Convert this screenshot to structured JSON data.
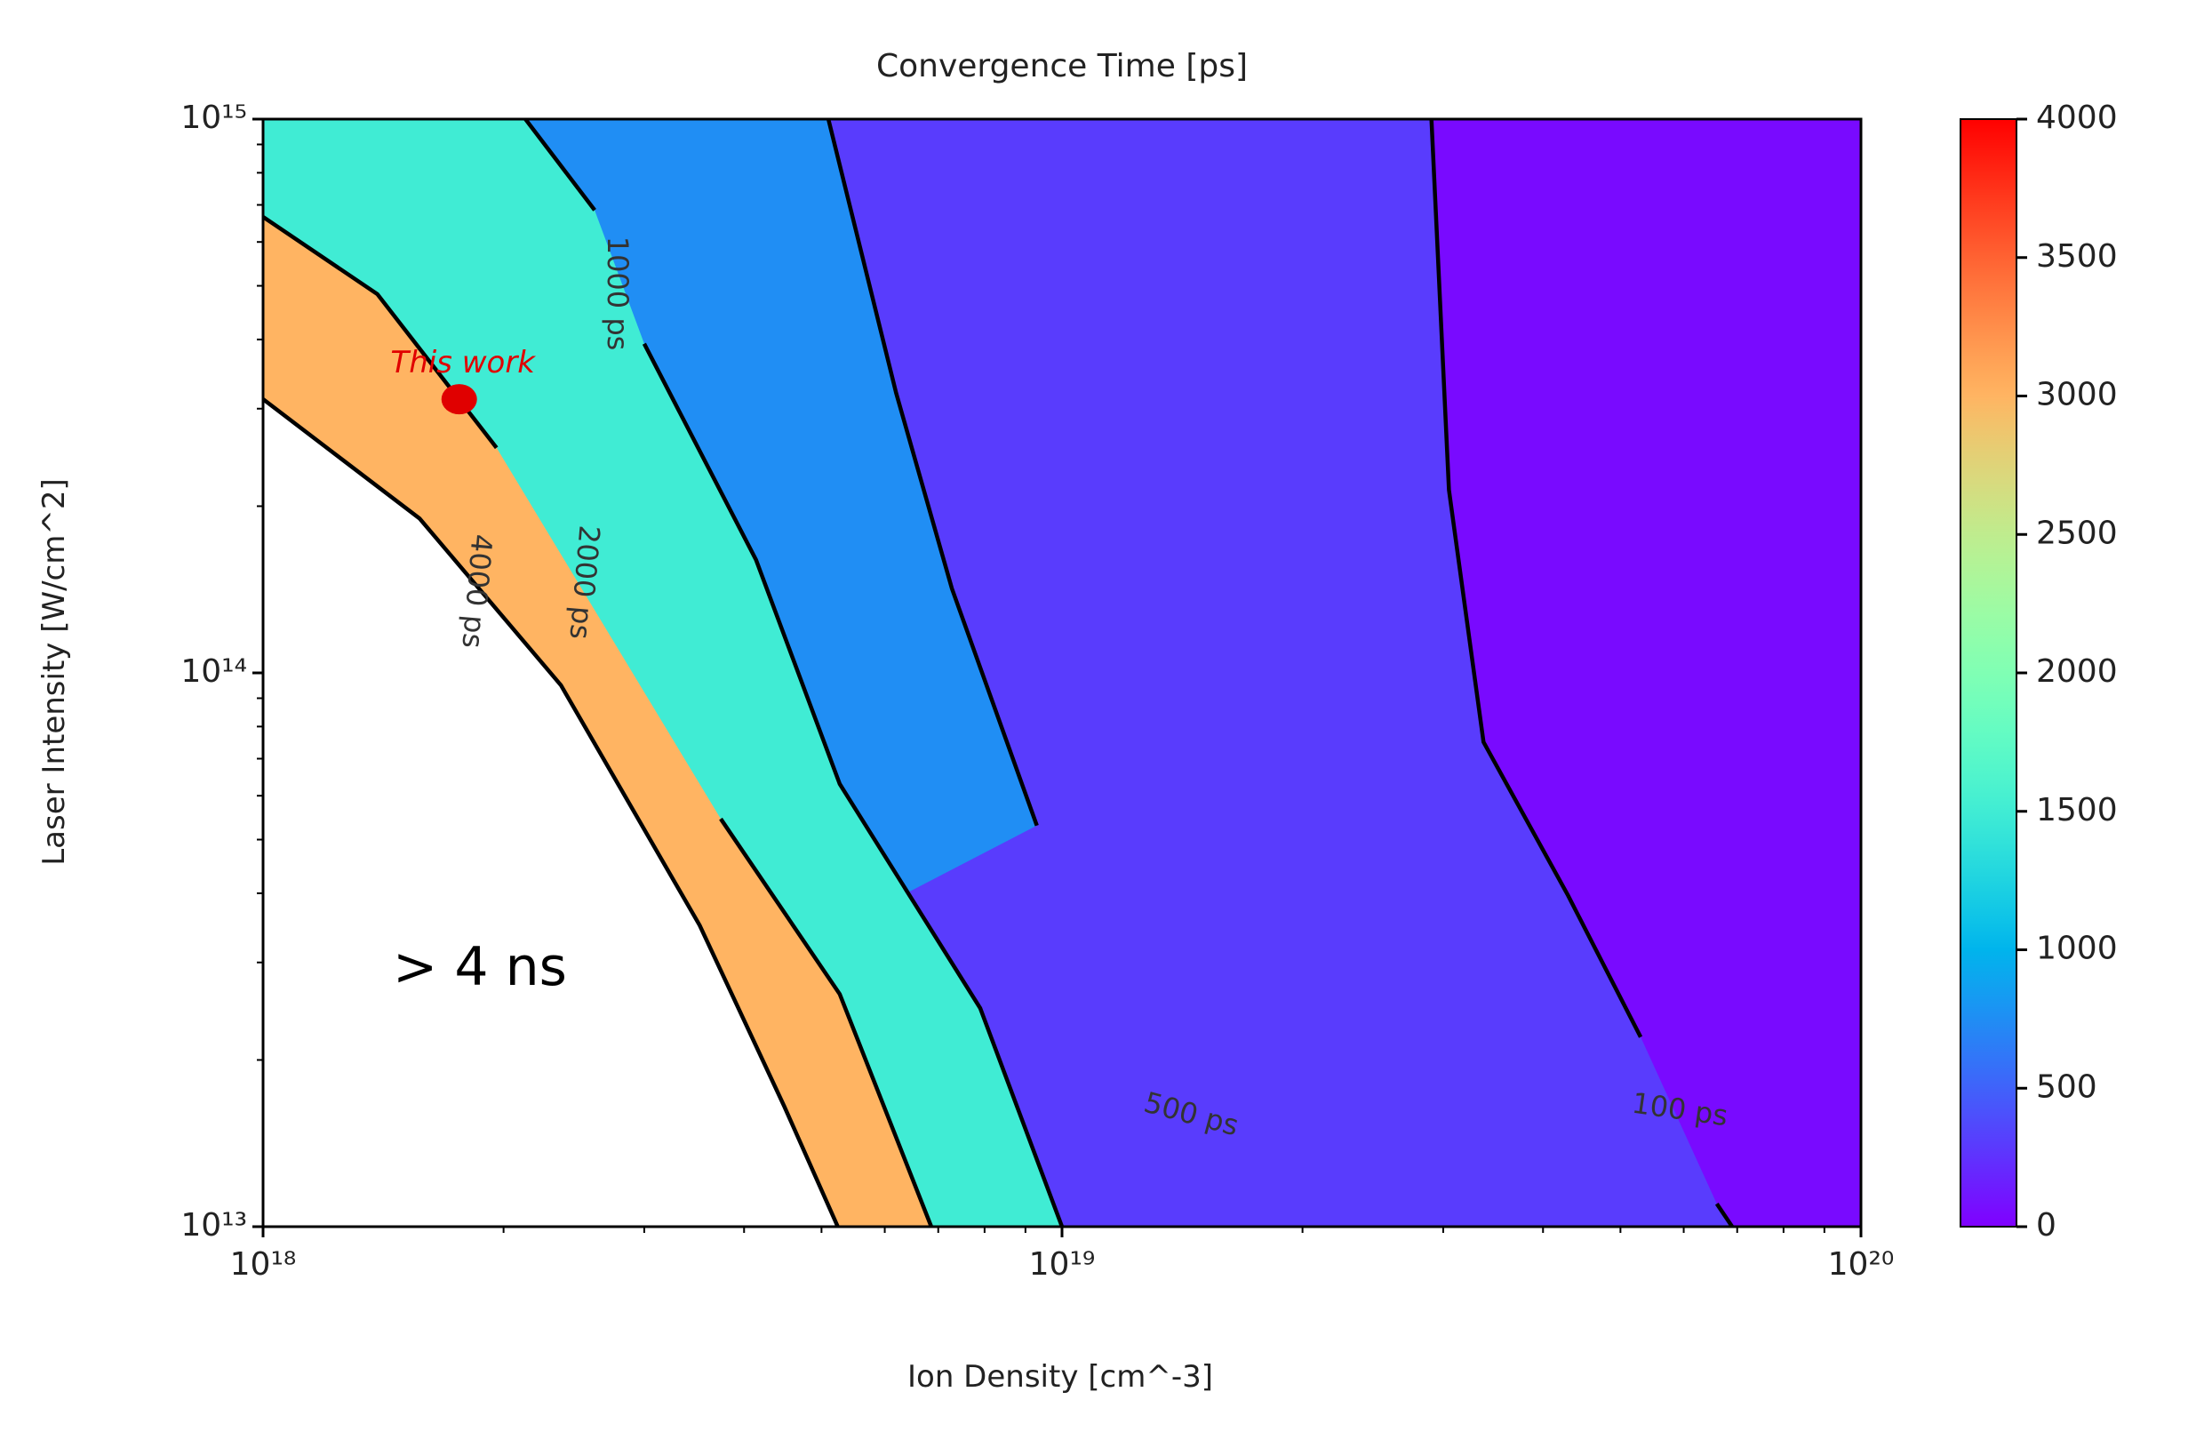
{
  "chart_data": {
    "type": "contour",
    "title": "Convergence Time [ps]",
    "xlabel": "Ion Density [cm^-3]",
    "ylabel": "Laser Intensity [W/cm^2]",
    "xscale": "log",
    "yscale": "log",
    "xlim": [
      1e+18,
      1e+20
    ],
    "ylim": [
      10000000000000.0,
      1000000000000000.0
    ],
    "xticks": [
      {
        "value": 1e+18,
        "label": "10¹⁸"
      },
      {
        "value": 1e+19,
        "label": "10¹⁹"
      },
      {
        "value": 1e+20,
        "label": "10²⁰"
      }
    ],
    "yticks": [
      {
        "value": 10000000000000.0,
        "label": "10¹³"
      },
      {
        "value": 100000000000000.0,
        "label": "10¹⁴"
      },
      {
        "value": 1000000000000000.0,
        "label": "10¹⁵"
      }
    ],
    "xminorticks": [
      2e+18,
      3e+18,
      4e+18,
      5e+18,
      6e+18,
      7e+18,
      8e+18,
      9e+18,
      2e+19,
      3e+19,
      4e+19,
      5e+19,
      6e+19,
      7e+19,
      8e+19,
      9e+19
    ],
    "yminorticks": [
      20000000000000.0,
      30000000000000.0,
      40000000000000.0,
      50000000000000.0,
      60000000000000.0,
      70000000000000.0,
      80000000000000.0,
      90000000000000.0,
      200000000000000.0,
      300000000000000.0,
      400000000000000.0,
      500000000000000.0,
      600000000000000.0,
      700000000000000.0,
      800000000000000.0,
      900000000000000.0
    ],
    "colormap": "rainbow",
    "clim": [
      0,
      4000
    ],
    "cticks": [
      0,
      500,
      1000,
      1500,
      2000,
      2500,
      3000,
      3500,
      4000
    ],
    "contours": [
      {
        "level": 100,
        "label": "100 ps",
        "x": [
          2.9e+19,
          3.05e+19,
          3.37e+19,
          4.3e+19,
          5.3e+19,
          null,
          6.6e+19,
          6.9e+19
        ],
        "y": [
          1000000000000000.0,
          214000000000000.0,
          75000000000000.0,
          39600000000000.0,
          22000000000000.0,
          null,
          11000000000000.0,
          10000000000000.0
        ]
      },
      {
        "level": 500,
        "label": "500 ps",
        "x": [
          5.1e+18,
          6.2e+18,
          7.28e+18,
          9.3e+18
        ],
        "y": [
          1000000000000000.0,
          320000000000000.0,
          142000000000000.0,
          53000000000000.0
        ]
      },
      {
        "level": 1000,
        "label": "1000 ps",
        "x": [
          2.13e+18,
          2.6e+18,
          null,
          3e+18,
          4.14e+18,
          5.27e+18,
          7.9e+18,
          1e+19
        ],
        "y": [
          1000000000000000.0,
          685000000000000.0,
          null,
          393000000000000.0,
          160000000000000.0,
          63000000000000.0,
          24800000000000.0,
          10000000000000.0
        ]
      },
      {
        "level": 2000,
        "label": "2000 ps",
        "x": [
          1e+18,
          1.39e+18,
          1.96e+18,
          null,
          3.74e+18,
          5.27e+18,
          6.86e+18
        ],
        "y": [
          666000000000000.0,
          483000000000000.0,
          255000000000000.0,
          null,
          54500000000000.0,
          26300000000000.0,
          10000000000000.0
        ]
      },
      {
        "level": 4000,
        "label": "4000 ps",
        "x": [
          1e+18,
          1.57e+18,
          2.36e+18,
          3.52e+18,
          4.49e+18,
          5.24e+18
        ],
        "y": [
          312000000000000.0,
          190000000000000.0,
          95000000000000.0,
          35000000000000.0,
          16500000000000.0,
          10000000000000.0
        ]
      }
    ],
    "points": [
      {
        "label": "This work",
        "color": "#e00000",
        "x": 1.76e+18,
        "y": 312000000000000.0
      }
    ],
    "annotations": [
      "> 4 ns"
    ]
  }
}
